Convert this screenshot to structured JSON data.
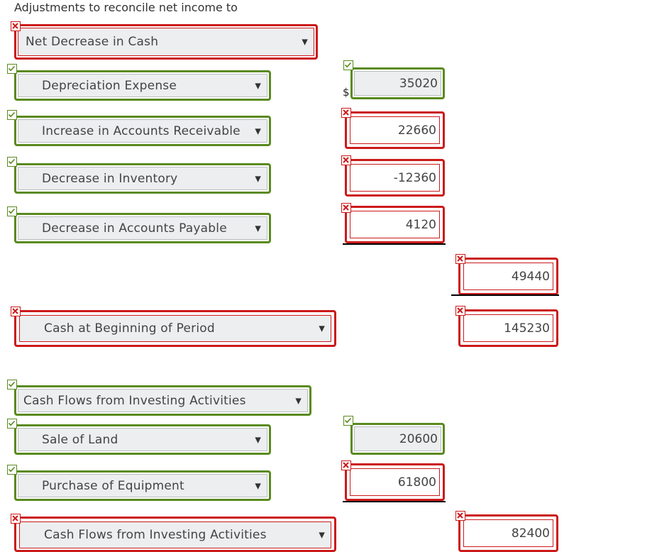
{
  "header": {
    "text": "Adjustments to reconcile net income to"
  },
  "currency_symbol": "$",
  "selects": {
    "net_change": "Net Decrease in Cash",
    "depreciation": "Depreciation Expense",
    "accounts_receivable": "Increase in Accounts Receivable",
    "inventory": "Decrease in Inventory",
    "accounts_payable": "Decrease in Accounts Payable",
    "cash_beginning": "Cash at Beginning of Period",
    "investing_heading": "Cash Flows from Investing Activities",
    "sale_of_land": "Sale of Land",
    "purchase_equipment": "Purchase of Equipment",
    "investing_total": "Cash Flows from Investing Activities"
  },
  "values": {
    "depreciation": "35020",
    "accounts_receivable": "22660",
    "inventory": "-12360",
    "accounts_payable": "4120",
    "operating_subtotal": "49440",
    "cash_beginning": "145230",
    "sale_of_land": "20600",
    "purchase_equipment": "61800",
    "investing_total": "82400"
  },
  "icons": {
    "correct": "check-icon",
    "incorrect": "x-icon",
    "dropdown": "dropdown-arrow-icon"
  },
  "colors": {
    "correct": "#5a8a1e",
    "incorrect": "#cc1a1a"
  }
}
